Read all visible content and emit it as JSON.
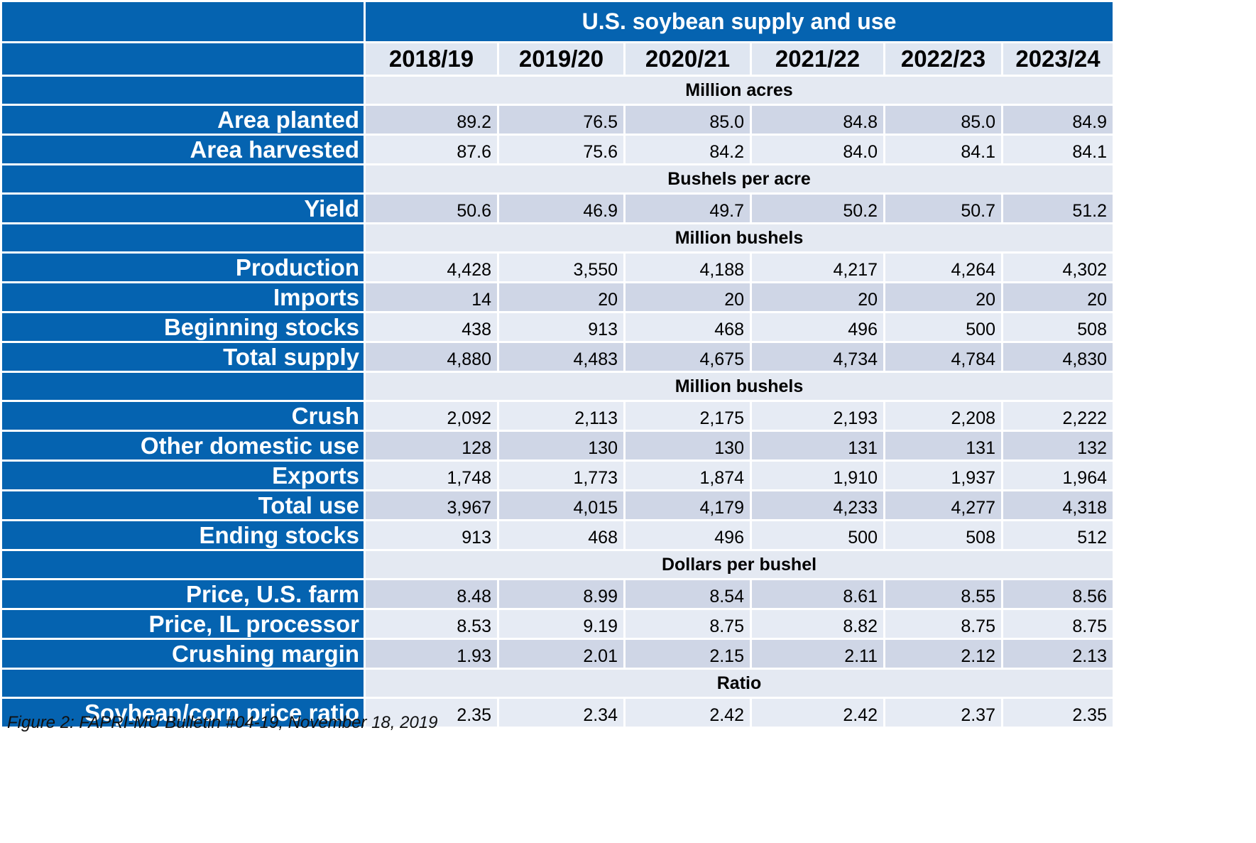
{
  "title": "U.S. soybean supply and use",
  "years": [
    "2018/19",
    "2019/20",
    "2020/21",
    "2021/22",
    "2022/23",
    "2023/24"
  ],
  "sections": [
    {
      "unit": "Million acres",
      "rows": [
        {
          "label": "Area planted",
          "values": [
            "89.2",
            "76.5",
            "85.0",
            "84.8",
            "85.0",
            "84.9"
          ]
        },
        {
          "label": "Area harvested",
          "values": [
            "87.6",
            "75.6",
            "84.2",
            "84.0",
            "84.1",
            "84.1"
          ]
        }
      ]
    },
    {
      "unit": "Bushels per acre",
      "rows": [
        {
          "label": "Yield",
          "values": [
            "50.6",
            "46.9",
            "49.7",
            "50.2",
            "50.7",
            "51.2"
          ]
        }
      ]
    },
    {
      "unit": "Million bushels",
      "rows": [
        {
          "label": "Production",
          "values": [
            "4,428",
            "3,550",
            "4,188",
            "4,217",
            "4,264",
            "4,302"
          ]
        },
        {
          "label": "Imports",
          "values": [
            "14",
            "20",
            "20",
            "20",
            "20",
            "20"
          ]
        },
        {
          "label": "Beginning stocks",
          "values": [
            "438",
            "913",
            "468",
            "496",
            "500",
            "508"
          ]
        },
        {
          "label": "Total supply",
          "values": [
            "4,880",
            "4,483",
            "4,675",
            "4,734",
            "4,784",
            "4,830"
          ]
        }
      ]
    },
    {
      "unit": "Million bushels",
      "rows": [
        {
          "label": "Crush",
          "values": [
            "2,092",
            "2,113",
            "2,175",
            "2,193",
            "2,208",
            "2,222"
          ]
        },
        {
          "label": "Other domestic use",
          "values": [
            "128",
            "130",
            "130",
            "131",
            "131",
            "132"
          ]
        },
        {
          "label": "Exports",
          "values": [
            "1,748",
            "1,773",
            "1,874",
            "1,910",
            "1,937",
            "1,964"
          ]
        },
        {
          "label": "Total use",
          "values": [
            "3,967",
            "4,015",
            "4,179",
            "4,233",
            "4,277",
            "4,318"
          ]
        },
        {
          "label": "Ending stocks",
          "values": [
            "913",
            "468",
            "496",
            "500",
            "508",
            "512"
          ]
        }
      ]
    },
    {
      "unit": "Dollars per bushel",
      "rows": [
        {
          "label": "Price, U.S. farm",
          "values": [
            "8.48",
            "8.99",
            "8.54",
            "8.61",
            "8.55",
            "8.56"
          ]
        },
        {
          "label": "Price, IL processor",
          "values": [
            "8.53",
            "9.19",
            "8.75",
            "8.82",
            "8.75",
            "8.75"
          ]
        },
        {
          "label": "Crushing margin",
          "values": [
            "1.93",
            "2.01",
            "2.15",
            "2.11",
            "2.12",
            "2.13"
          ]
        }
      ]
    },
    {
      "unit": "Ratio",
      "rows": [
        {
          "label": "Soybean/corn price ratio",
          "values": [
            "2.35",
            "2.34",
            "2.42",
            "2.42",
            "2.37",
            "2.35"
          ]
        }
      ]
    }
  ],
  "caption": "Figure 2: FAPRI-MU Bulletin #04-19, November 18, 2019",
  "colors": {
    "header_blue": "#0563b0",
    "row_dark": "#cfd6e6",
    "row_light": "#e6ebf4"
  }
}
